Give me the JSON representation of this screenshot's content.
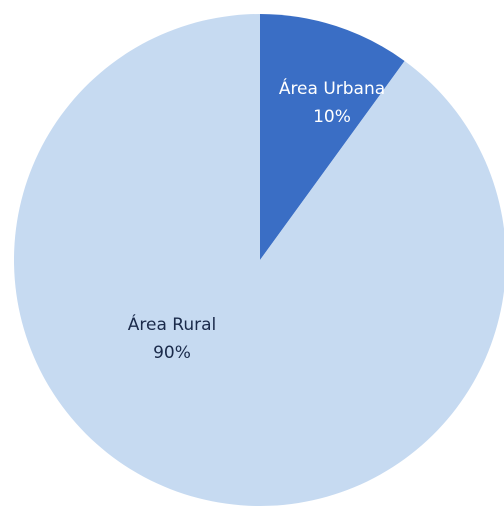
{
  "chart_data": {
    "type": "pie",
    "categories": [
      "Área Urbana",
      "Área Rural"
    ],
    "values": [
      10,
      90
    ],
    "value_labels": [
      "10%",
      "90%"
    ],
    "colors": [
      "#3a6ec5",
      "#c6daf1"
    ],
    "label_colors": [
      "#ffffff",
      "#1a2a4a"
    ]
  }
}
